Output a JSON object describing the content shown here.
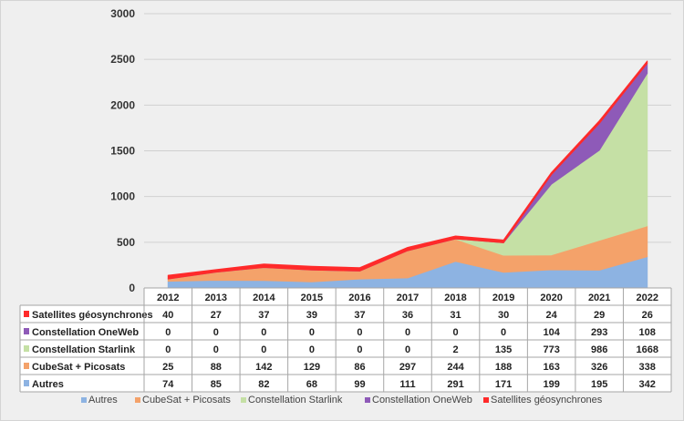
{
  "chart_data": {
    "type": "area",
    "stacked": true,
    "title": "",
    "xlabel": "",
    "ylabel": "",
    "ylim": [
      0,
      3000
    ],
    "yticks": [
      0,
      500,
      1000,
      1500,
      2000,
      2500,
      3000
    ],
    "grid": true,
    "legend_placement": "bottom",
    "data_table": true,
    "categories": [
      "2012",
      "2013",
      "2014",
      "2015",
      "2016",
      "2017",
      "2018",
      "2019",
      "2020",
      "2021",
      "2022"
    ],
    "series": [
      {
        "name": "Autres",
        "color": "#8db3e2",
        "values": [
          74,
          85,
          82,
          68,
          99,
          111,
          291,
          171,
          199,
          195,
          342
        ]
      },
      {
        "name": "CubeSat + Picosats",
        "color": "#f4a26a",
        "values": [
          25,
          88,
          142,
          129,
          86,
          297,
          244,
          188,
          163,
          326,
          338
        ]
      },
      {
        "name": "Constellation Starlink",
        "color": "#c5e0a5",
        "values": [
          0,
          0,
          0,
          0,
          0,
          0,
          2,
          135,
          773,
          986,
          1668
        ]
      },
      {
        "name": "Constellation OneWeb",
        "color": "#8e5ab8",
        "values": [
          0,
          0,
          0,
          0,
          0,
          0,
          0,
          0,
          104,
          293,
          108
        ]
      },
      {
        "name": "Satellites géosynchrones",
        "color": "#ff2a2a",
        "values": [
          40,
          27,
          37,
          39,
          37,
          36,
          31,
          30,
          24,
          29,
          26
        ]
      }
    ]
  }
}
